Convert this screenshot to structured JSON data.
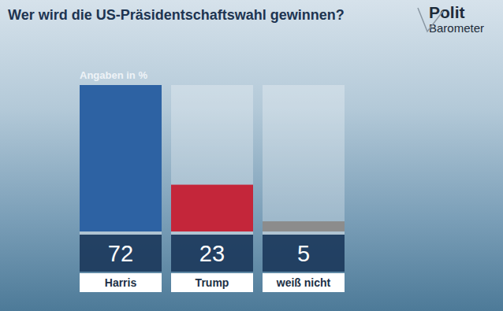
{
  "chart_data": {
    "type": "bar",
    "title": "Wer wird die US-Präsidentschaftswahl gewinnen?",
    "subtitle": "Angaben in %",
    "annotations": [
      "Polit",
      "Barometer"
    ],
    "categories": [
      "Harris",
      "Trump",
      "weiß nicht"
    ],
    "values": [
      72,
      23,
      5
    ],
    "colors": [
      "#2d62a3",
      "#c4263a",
      "#8c8c8c"
    ],
    "ylim": [
      0,
      72
    ],
    "tick_labels": false,
    "grid": false,
    "data_labels": true
  }
}
